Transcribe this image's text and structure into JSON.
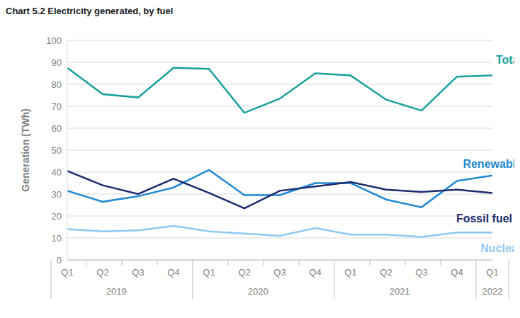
{
  "chart_data": {
    "type": "line",
    "title": "Chart 5.2 Electricity generated, by fuel",
    "y_label": "Generation (TWh)",
    "categories": [
      "Q1",
      "Q2",
      "Q3",
      "Q4",
      "Q1",
      "Q2",
      "Q3",
      "Q4",
      "Q1",
      "Q2",
      "Q3",
      "Q4",
      "Q1"
    ],
    "category_groups": [
      "2019",
      "2019",
      "2019",
      "2019",
      "2020",
      "2020",
      "2020",
      "2020",
      "2021",
      "2021",
      "2021",
      "2021",
      "2022"
    ],
    "series": [
      {
        "name": "Total",
        "color": "#17a09a",
        "values": [
          87.5,
          75.5,
          74,
          87.5,
          87,
          67,
          73.5,
          85,
          84,
          73,
          68,
          83.5,
          84
        ]
      },
      {
        "name": "Renewable",
        "color": "#2189d3",
        "values": [
          31.5,
          26.5,
          29,
          33,
          41,
          29.5,
          29.5,
          35,
          35,
          27.5,
          24,
          36,
          38.5
        ]
      },
      {
        "name": "Fossil fuel",
        "color": "#1c2b6e",
        "values": [
          40.5,
          34,
          30,
          37,
          30.5,
          23.5,
          31.5,
          33.5,
          35.5,
          32,
          31,
          32,
          30.5
        ]
      },
      {
        "name": "Nuclear",
        "color": "#8ec8f0",
        "values": [
          14,
          13,
          13.5,
          15.5,
          13,
          12,
          11,
          14.5,
          11.5,
          11.5,
          10.5,
          12.5,
          12.5
        ]
      }
    ],
    "ylim": [
      0,
      100
    ],
    "yticks": [
      0,
      10,
      20,
      30,
      40,
      50,
      60,
      70,
      80,
      90,
      100
    ],
    "grid": true
  }
}
